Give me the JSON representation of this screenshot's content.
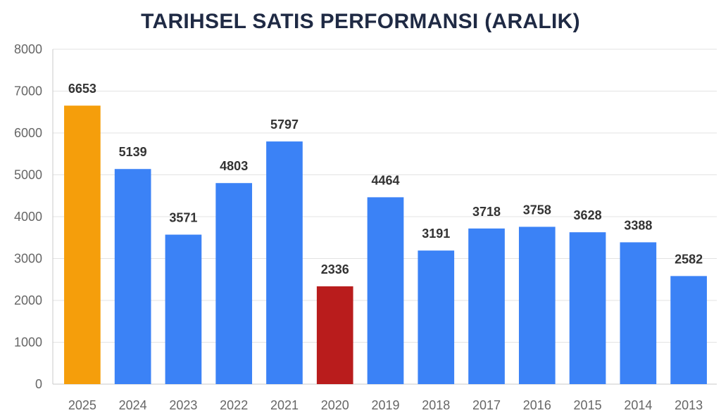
{
  "chart_data": {
    "type": "bar",
    "title": "TARIHSEL SATIS PERFORMANSI (ARALIK)",
    "xlabel": "",
    "ylabel": "",
    "categories": [
      "2025",
      "2024",
      "2023",
      "2022",
      "2021",
      "2020",
      "2019",
      "2018",
      "2017",
      "2016",
      "2015",
      "2014",
      "2013"
    ],
    "values": [
      6653,
      5139,
      3571,
      4803,
      5797,
      2336,
      4464,
      3191,
      3718,
      3758,
      3628,
      3388,
      2582
    ],
    "bar_colors": [
      "#f59e0b",
      "#3b82f6",
      "#3b82f6",
      "#3b82f6",
      "#3b82f6",
      "#b91c1c",
      "#3b82f6",
      "#3b82f6",
      "#3b82f6",
      "#3b82f6",
      "#3b82f6",
      "#3b82f6",
      "#3b82f6"
    ],
    "ylim": [
      0,
      8000
    ],
    "yticks": [
      0,
      1000,
      2000,
      3000,
      4000,
      5000,
      6000,
      7000,
      8000
    ],
    "grid": true,
    "legend": "none",
    "data_labels": true
  }
}
